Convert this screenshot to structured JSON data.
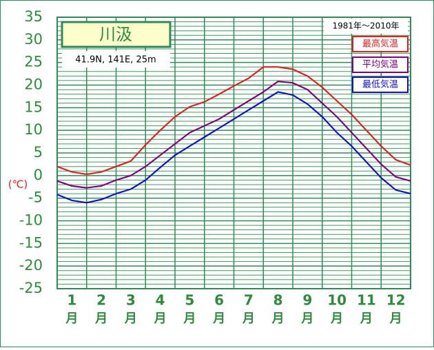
{
  "chart_data": {
    "type": "line",
    "title": "川汲",
    "subtitle": "41.9N,  141E,  25m",
    "period": "1981年～2010年",
    "ylabel": "(℃)",
    "categories": [
      "1",
      "2",
      "3",
      "4",
      "5",
      "6",
      "7",
      "8",
      "9",
      "10",
      "11",
      "12"
    ],
    "month_unit": "月",
    "x": [
      0,
      0.5,
      1,
      1.5,
      2,
      2.5,
      3,
      3.5,
      4,
      4.5,
      5,
      5.5,
      6,
      6.5,
      7,
      7.5,
      8,
      8.5,
      9,
      9.5,
      10,
      10.5,
      11,
      11.5,
      12
    ],
    "xlim": [
      0,
      12
    ],
    "xticks": [
      0,
      1,
      2,
      3,
      4,
      5,
      6,
      7,
      8,
      9,
      10,
      11,
      12
    ],
    "ylim": [
      -25,
      35
    ],
    "yticks": [
      35,
      30,
      25,
      20,
      15,
      10,
      5,
      0,
      -5,
      -10,
      -15,
      -20,
      -25
    ],
    "grid_yticks": [
      -24,
      -23,
      -22,
      -21,
      -19,
      -18,
      -17,
      -16,
      -14,
      -13,
      -12,
      -11,
      -9,
      -8,
      -7,
      -6,
      -4,
      -3,
      -2,
      -1,
      1,
      2,
      3,
      4,
      6,
      7,
      8,
      9,
      11,
      12,
      13,
      14,
      16,
      17,
      18,
      19,
      21,
      22,
      23,
      24,
      26,
      27,
      28,
      29,
      31,
      32,
      33,
      34
    ],
    "grid": true,
    "legend": "upper right",
    "series": [
      {
        "name": "最高気温",
        "color": "#e02020",
        "values": [
          2,
          0.8,
          0.3,
          0.8,
          2,
          3.2,
          6.8,
          10,
          13,
          15.2,
          16.3,
          18,
          19.8,
          21.5,
          24,
          24,
          23.5,
          22,
          19.5,
          16.5,
          13.5,
          10,
          6.5,
          3.5,
          2.3
        ]
      },
      {
        "name": "平均気温",
        "color": "#800080",
        "values": [
          -1.2,
          -2.3,
          -2.7,
          -2.3,
          -1,
          0,
          2,
          4.5,
          7,
          9.5,
          11,
          12.5,
          14.5,
          16.5,
          18.5,
          20.8,
          20.5,
          19,
          16,
          13,
          9.5,
          6,
          2.5,
          -0.3,
          -1.2
        ]
      },
      {
        "name": "最低気温",
        "color": "#1010d0",
        "values": [
          -4.2,
          -5.5,
          -6,
          -5.3,
          -4,
          -3,
          -1,
          1.8,
          4.5,
          6.5,
          8.5,
          10.5,
          12.5,
          14.5,
          16.5,
          18.5,
          17.8,
          15.8,
          13,
          9.5,
          6.5,
          3,
          -0.5,
          -3.2,
          -4
        ]
      }
    ]
  }
}
